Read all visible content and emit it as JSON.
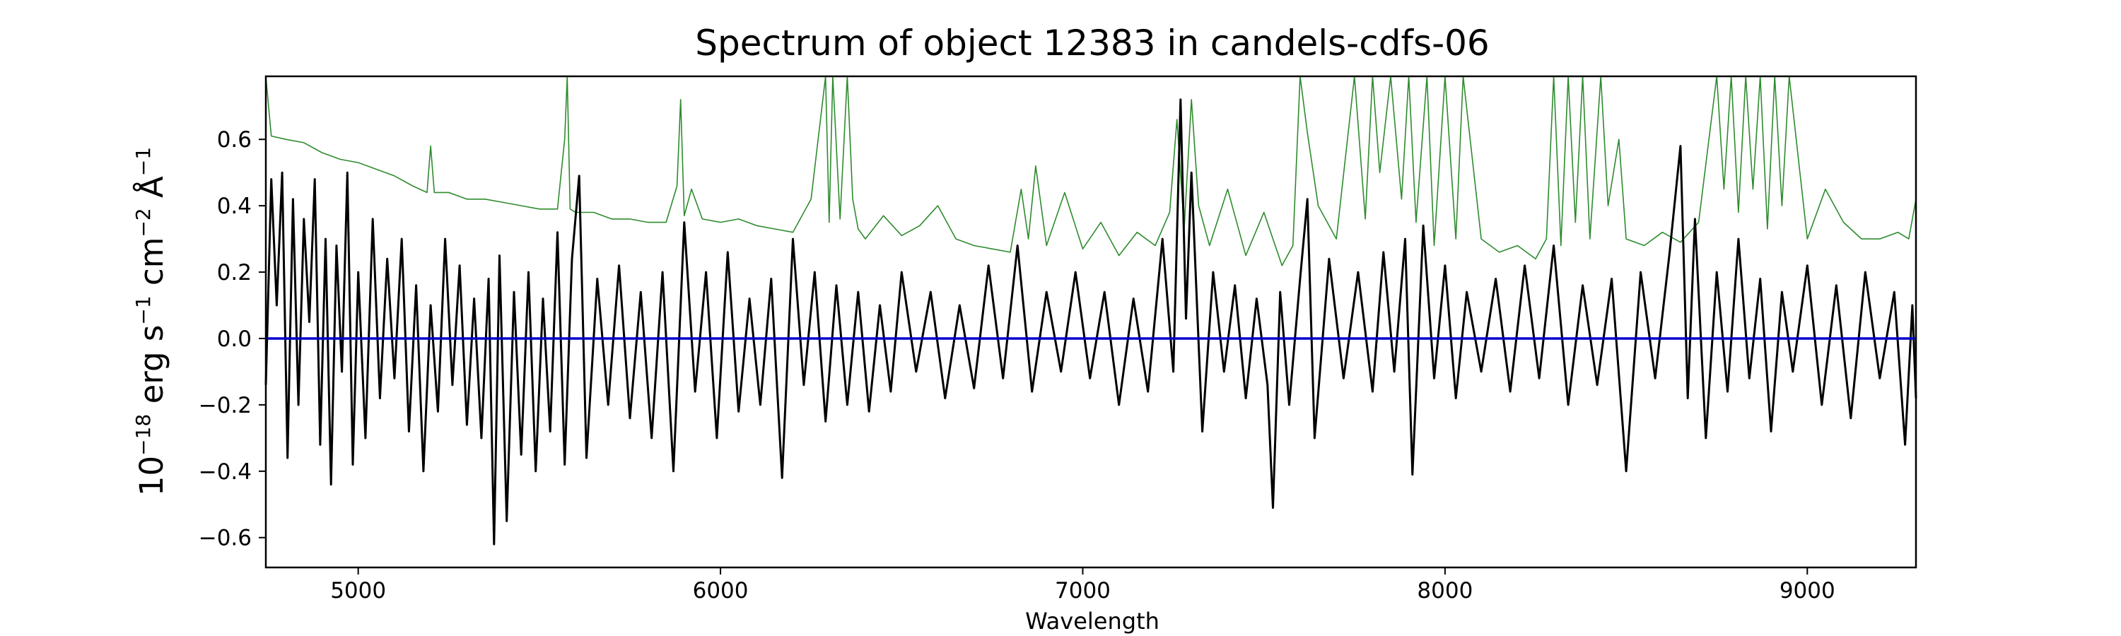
{
  "chart_data": {
    "type": "line",
    "title": "Spectrum of object 12383 in candels-cdfs-06",
    "xlabel": "Wavelength",
    "ylabel": {
      "prefix": "10",
      "prefix_sup": "−18",
      "erg": " erg s",
      "s_sup": "−1",
      "cm": " cm",
      "cm_sup": "−2",
      "ang": " Å",
      "ang_sup": "−1"
    },
    "xlim": [
      4745,
      9300
    ],
    "ylim": [
      -0.69,
      0.79
    ],
    "xticks": [
      {
        "value": 5000,
        "label": "5000"
      },
      {
        "value": 6000,
        "label": "6000"
      },
      {
        "value": 7000,
        "label": "7000"
      },
      {
        "value": 8000,
        "label": "8000"
      },
      {
        "value": 9000,
        "label": "9000"
      }
    ],
    "yticks": [
      {
        "value": 0.6,
        "label": "0.6"
      },
      {
        "value": 0.4,
        "label": "0.4"
      },
      {
        "value": 0.2,
        "label": "0.2"
      },
      {
        "value": 0.0,
        "label": "0.0"
      },
      {
        "value": -0.2,
        "label": "−0.2"
      },
      {
        "value": -0.4,
        "label": "−0.4"
      },
      {
        "value": -0.6,
        "label": "−0.6"
      }
    ],
    "grid": false,
    "series": [
      {
        "role": "error",
        "color": "#2e8b2e",
        "x": [
          4745,
          4760,
          4800,
          4850,
          4900,
          4950,
          5000,
          5050,
          5100,
          5150,
          5190,
          5200,
          5210,
          5250,
          5300,
          5350,
          5400,
          5450,
          5500,
          5550,
          5570,
          5577,
          5585,
          5600,
          5650,
          5700,
          5750,
          5800,
          5850,
          5880,
          5890,
          5900,
          5920,
          5950,
          6000,
          6050,
          6100,
          6150,
          6200,
          6250,
          6290,
          6300,
          6310,
          6330,
          6350,
          6365,
          6380,
          6400,
          6450,
          6500,
          6550,
          6600,
          6650,
          6700,
          6750,
          6800,
          6830,
          6850,
          6870,
          6900,
          6950,
          7000,
          7050,
          7100,
          7150,
          7200,
          7240,
          7260,
          7280,
          7300,
          7320,
          7350,
          7400,
          7450,
          7500,
          7550,
          7580,
          7600,
          7620,
          7650,
          7700,
          7750,
          7780,
          7800,
          7820,
          7850,
          7880,
          7900,
          7920,
          7950,
          7970,
          8000,
          8030,
          8050,
          8100,
          8150,
          8200,
          8250,
          8280,
          8300,
          8320,
          8340,
          8360,
          8380,
          8400,
          8430,
          8450,
          8480,
          8500,
          8550,
          8600,
          8650,
          8700,
          8750,
          8770,
          8790,
          8810,
          8830,
          8850,
          8870,
          8890,
          8910,
          8930,
          8950,
          9000,
          9050,
          9100,
          9150,
          9200,
          9250,
          9280,
          9300
        ],
        "y": [
          0.79,
          0.61,
          0.6,
          0.59,
          0.56,
          0.54,
          0.53,
          0.51,
          0.49,
          0.46,
          0.44,
          0.58,
          0.44,
          0.44,
          0.42,
          0.42,
          0.41,
          0.4,
          0.39,
          0.39,
          0.6,
          0.79,
          0.39,
          0.38,
          0.38,
          0.36,
          0.36,
          0.35,
          0.35,
          0.46,
          0.72,
          0.37,
          0.45,
          0.36,
          0.35,
          0.36,
          0.34,
          0.33,
          0.32,
          0.42,
          0.79,
          0.35,
          0.79,
          0.36,
          0.79,
          0.42,
          0.33,
          0.3,
          0.37,
          0.31,
          0.34,
          0.4,
          0.3,
          0.28,
          0.27,
          0.26,
          0.45,
          0.3,
          0.52,
          0.28,
          0.44,
          0.27,
          0.35,
          0.25,
          0.32,
          0.28,
          0.38,
          0.66,
          0.33,
          0.72,
          0.4,
          0.28,
          0.45,
          0.25,
          0.38,
          0.22,
          0.28,
          0.79,
          0.62,
          0.4,
          0.3,
          0.79,
          0.36,
          0.79,
          0.5,
          0.79,
          0.42,
          0.79,
          0.35,
          0.79,
          0.28,
          0.79,
          0.3,
          0.79,
          0.3,
          0.26,
          0.28,
          0.24,
          0.3,
          0.79,
          0.28,
          0.79,
          0.35,
          0.79,
          0.3,
          0.79,
          0.4,
          0.6,
          0.3,
          0.28,
          0.32,
          0.29,
          0.35,
          0.79,
          0.45,
          0.79,
          0.38,
          0.79,
          0.45,
          0.79,
          0.33,
          0.79,
          0.4,
          0.79,
          0.3,
          0.45,
          0.35,
          0.3,
          0.3,
          0.32,
          0.3,
          0.42
        ]
      },
      {
        "role": "flux",
        "color": "#000000",
        "x": [
          4745,
          4760,
          4775,
          4790,
          4805,
          4820,
          4835,
          4850,
          4865,
          4880,
          4895,
          4910,
          4925,
          4940,
          4955,
          4970,
          4985,
          5000,
          5020,
          5040,
          5060,
          5080,
          5100,
          5120,
          5140,
          5160,
          5180,
          5200,
          5220,
          5240,
          5260,
          5280,
          5300,
          5320,
          5340,
          5360,
          5375,
          5390,
          5410,
          5430,
          5450,
          5470,
          5490,
          5510,
          5530,
          5550,
          5570,
          5590,
          5610,
          5630,
          5660,
          5690,
          5720,
          5750,
          5780,
          5810,
          5840,
          5870,
          5900,
          5930,
          5960,
          5990,
          6020,
          6050,
          6080,
          6110,
          6140,
          6170,
          6200,
          6230,
          6260,
          6290,
          6320,
          6350,
          6380,
          6410,
          6440,
          6470,
          6500,
          6540,
          6580,
          6620,
          6660,
          6700,
          6740,
          6780,
          6820,
          6860,
          6900,
          6940,
          6980,
          7020,
          7060,
          7100,
          7140,
          7180,
          7220,
          7250,
          7270,
          7285,
          7300,
          7330,
          7360,
          7390,
          7420,
          7450,
          7480,
          7510,
          7525,
          7545,
          7570,
          7600,
          7620,
          7640,
          7680,
          7720,
          7760,
          7800,
          7830,
          7860,
          7890,
          7910,
          7940,
          7970,
          8000,
          8030,
          8060,
          8100,
          8140,
          8180,
          8220,
          8260,
          8300,
          8340,
          8380,
          8420,
          8460,
          8500,
          8540,
          8580,
          8620,
          8650,
          8670,
          8690,
          8720,
          8750,
          8780,
          8810,
          8840,
          8870,
          8900,
          8930,
          8960,
          9000,
          9040,
          9080,
          9120,
          9160,
          9200,
          9240,
          9270,
          9290,
          9300
        ],
        "y": [
          -0.14,
          0.48,
          0.1,
          0.5,
          -0.36,
          0.42,
          -0.2,
          0.36,
          0.05,
          0.48,
          -0.32,
          0.3,
          -0.44,
          0.28,
          -0.1,
          0.5,
          -0.38,
          0.2,
          -0.3,
          0.36,
          -0.18,
          0.24,
          -0.12,
          0.3,
          -0.28,
          0.16,
          -0.4,
          0.1,
          -0.22,
          0.3,
          -0.14,
          0.22,
          -0.26,
          0.12,
          -0.3,
          0.18,
          -0.62,
          0.25,
          -0.55,
          0.14,
          -0.35,
          0.2,
          -0.4,
          0.12,
          -0.28,
          0.32,
          -0.38,
          0.24,
          0.49,
          -0.36,
          0.18,
          -0.2,
          0.22,
          -0.24,
          0.14,
          -0.3,
          0.2,
          -0.4,
          0.35,
          -0.16,
          0.2,
          -0.3,
          0.26,
          -0.22,
          0.12,
          -0.2,
          0.18,
          -0.42,
          0.3,
          -0.14,
          0.2,
          -0.25,
          0.16,
          -0.2,
          0.14,
          -0.22,
          0.1,
          -0.16,
          0.2,
          -0.1,
          0.14,
          -0.18,
          0.1,
          -0.15,
          0.22,
          -0.12,
          0.28,
          -0.16,
          0.14,
          -0.1,
          0.2,
          -0.12,
          0.14,
          -0.2,
          0.12,
          -0.16,
          0.3,
          -0.1,
          0.72,
          0.06,
          0.5,
          -0.28,
          0.2,
          -0.1,
          0.16,
          -0.18,
          0.12,
          -0.14,
          -0.51,
          0.14,
          -0.2,
          0.18,
          0.42,
          -0.3,
          0.24,
          -0.12,
          0.2,
          -0.16,
          0.26,
          -0.1,
          0.3,
          -0.41,
          0.34,
          -0.12,
          0.22,
          -0.18,
          0.14,
          -0.1,
          0.18,
          -0.16,
          0.22,
          -0.12,
          0.28,
          -0.2,
          0.16,
          -0.14,
          0.18,
          -0.4,
          0.2,
          -0.12,
          0.26,
          0.58,
          -0.18,
          0.36,
          -0.3,
          0.2,
          -0.16,
          0.3,
          -0.12,
          0.18,
          -0.28,
          0.14,
          -0.1,
          0.22,
          -0.2,
          0.16,
          -0.24,
          0.2,
          -0.12,
          0.14,
          -0.32,
          0.1,
          -0.18
        ]
      },
      {
        "role": "zero",
        "color": "#0000cc",
        "x": [
          4745,
          9300
        ],
        "y": [
          0,
          0
        ]
      }
    ]
  }
}
